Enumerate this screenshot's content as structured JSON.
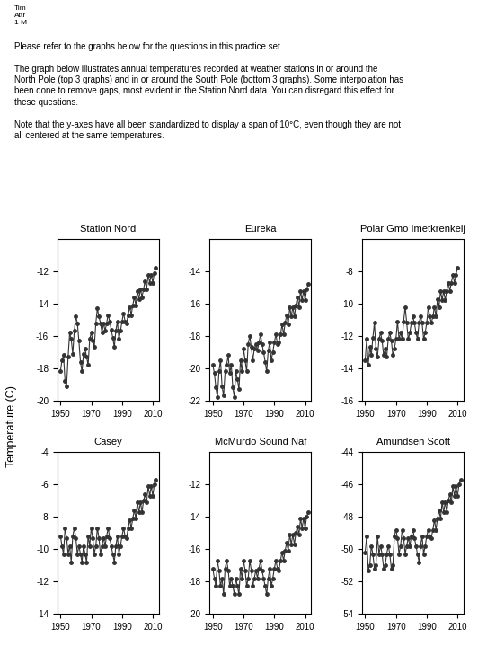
{
  "annotations": [
    "Tim\nAttr\n1 M",
    "Please refer to the graphs below for the questions in this practice set.\n\nThe graph below illustrates annual temperatures recorded at weather stations in or around the\nNorth Pole (top 3 graphs) and in or around the South Pole (bottom 3 graphs). Some interpolation has\nbeen done to remove gaps, most evident in the Station Nord data. You can disregard this effect for\nthese questions.\n\nNote that the y-axes have all been standardized to display a span of 10°C, even though they are not\nall centered at the same temperatures."
  ],
  "ylabel": "Temperature (C)",
  "chart_data": [
    {
      "type": "line",
      "title": "Station Nord",
      "color": "#333333",
      "marker": "circle",
      "line_style": "solid",
      "xlim": [
        1948,
        2014
      ],
      "xticks": [
        1950,
        1970,
        1990,
        2010
      ],
      "ylim": [
        -20,
        -10
      ],
      "yticks": [
        -20,
        -18,
        -16,
        -14,
        -12
      ],
      "x": [
        1950,
        1951,
        1952,
        1953,
        1954,
        1955,
        1956,
        1957,
        1958,
        1959,
        1960,
        1961,
        1962,
        1963,
        1964,
        1965,
        1966,
        1967,
        1968,
        1969,
        1970,
        1971,
        1972,
        1973,
        1974,
        1975,
        1976,
        1977,
        1978,
        1979,
        1980,
        1981,
        1982,
        1983,
        1984,
        1985,
        1986,
        1987,
        1988,
        1989,
        1990,
        1991,
        1992,
        1993,
        1994,
        1995,
        1996,
        1997,
        1998,
        1999,
        2000,
        2001,
        2002,
        2003,
        2004,
        2005,
        2006,
        2007,
        2008,
        2009,
        2010,
        2011,
        2012
      ],
      "values": [
        -18.2,
        -17.5,
        -17.2,
        -18.8,
        -19.1,
        -17.3,
        -15.8,
        -16.2,
        -17.1,
        -15.7,
        -14.8,
        -15.2,
        -16.3,
        -17.6,
        -18.2,
        -17.1,
        -16.8,
        -17.3,
        -17.8,
        -16.2,
        -15.8,
        -16.3,
        -16.7,
        -15.2,
        -14.3,
        -14.8,
        -15.2,
        -15.8,
        -15.2,
        -15.7,
        -15.2,
        -14.7,
        -15.1,
        -15.6,
        -16.1,
        -16.7,
        -15.7,
        -15.1,
        -16.2,
        -15.7,
        -15.1,
        -14.6,
        -15.1,
        -15.2,
        -14.7,
        -14.2,
        -14.7,
        -14.1,
        -13.6,
        -14.1,
        -13.2,
        -13.7,
        -13.1,
        -13.6,
        -13.1,
        -12.6,
        -13.1,
        -12.2,
        -12.7,
        -12.2,
        -12.7,
        -12.1,
        -11.8
      ]
    },
    {
      "type": "line",
      "title": "Eureka",
      "color": "#333333",
      "marker": "circle",
      "line_style": "solid",
      "xlim": [
        1948,
        2014
      ],
      "xticks": [
        1950,
        1970,
        1990,
        2010
      ],
      "ylim": [
        -22,
        -12
      ],
      "yticks": [
        -22,
        -20,
        -18,
        -16,
        -14
      ],
      "x": [
        1950,
        1951,
        1952,
        1953,
        1954,
        1955,
        1956,
        1957,
        1958,
        1959,
        1960,
        1961,
        1962,
        1963,
        1964,
        1965,
        1966,
        1967,
        1968,
        1969,
        1970,
        1971,
        1972,
        1973,
        1974,
        1975,
        1976,
        1977,
        1978,
        1979,
        1980,
        1981,
        1982,
        1983,
        1984,
        1985,
        1986,
        1987,
        1988,
        1989,
        1990,
        1991,
        1992,
        1993,
        1994,
        1995,
        1996,
        1997,
        1998,
        1999,
        2000,
        2001,
        2002,
        2003,
        2004,
        2005,
        2006,
        2007,
        2008,
        2009,
        2010,
        2011,
        2012
      ],
      "values": [
        -19.8,
        -20.3,
        -21.2,
        -21.8,
        -20.2,
        -19.5,
        -21.1,
        -21.7,
        -20.2,
        -19.8,
        -19.2,
        -20.3,
        -19.8,
        -21.2,
        -21.8,
        -20.2,
        -20.7,
        -21.3,
        -19.5,
        -20.2,
        -18.8,
        -19.5,
        -20.2,
        -18.5,
        -18.0,
        -18.7,
        -19.5,
        -18.8,
        -18.5,
        -18.9,
        -18.4,
        -17.9,
        -18.5,
        -19.0,
        -19.6,
        -20.2,
        -18.9,
        -18.4,
        -19.5,
        -19.0,
        -18.4,
        -17.9,
        -18.5,
        -18.4,
        -17.9,
        -17.3,
        -17.9,
        -17.2,
        -16.7,
        -17.3,
        -16.2,
        -16.8,
        -16.2,
        -16.8,
        -16.1,
        -15.6,
        -16.2,
        -15.2,
        -15.8,
        -15.2,
        -15.8,
        -15.1,
        -14.8
      ]
    },
    {
      "type": "line",
      "title": "Polar Gmo Imetkrenkelj",
      "color": "#333333",
      "marker": "circle",
      "line_style": "solid",
      "xlim": [
        1948,
        2014
      ],
      "xticks": [
        1950,
        1970,
        1990,
        2010
      ],
      "ylim": [
        -16,
        -6
      ],
      "yticks": [
        -16,
        -14,
        -12,
        -10,
        -8
      ],
      "x": [
        1950,
        1951,
        1952,
        1953,
        1954,
        1955,
        1956,
        1957,
        1958,
        1959,
        1960,
        1961,
        1962,
        1963,
        1964,
        1965,
        1966,
        1967,
        1968,
        1969,
        1970,
        1971,
        1972,
        1973,
        1974,
        1975,
        1976,
        1977,
        1978,
        1979,
        1980,
        1981,
        1982,
        1983,
        1984,
        1985,
        1986,
        1987,
        1988,
        1989,
        1990,
        1991,
        1992,
        1993,
        1994,
        1995,
        1996,
        1997,
        1998,
        1999,
        2000,
        2001,
        2002,
        2003,
        2004,
        2005,
        2006,
        2007,
        2008,
        2009,
        2010
      ],
      "values": [
        -13.5,
        -12.2,
        -13.8,
        -12.7,
        -13.2,
        -12.1,
        -11.2,
        -12.8,
        -13.3,
        -12.2,
        -11.8,
        -12.3,
        -13.2,
        -12.8,
        -13.3,
        -12.2,
        -11.8,
        -12.3,
        -13.2,
        -12.8,
        -12.2,
        -11.1,
        -12.2,
        -11.8,
        -12.2,
        -11.1,
        -10.2,
        -11.2,
        -12.2,
        -11.8,
        -11.2,
        -10.8,
        -11.2,
        -11.8,
        -12.2,
        -11.2,
        -10.8,
        -11.2,
        -12.2,
        -11.8,
        -11.2,
        -10.2,
        -10.8,
        -11.2,
        -10.8,
        -10.2,
        -10.8,
        -9.7,
        -10.2,
        -9.2,
        -9.8,
        -9.2,
        -9.8,
        -9.2,
        -8.7,
        -9.2,
        -8.7,
        -8.2,
        -8.7,
        -8.2,
        -7.8
      ]
    },
    {
      "type": "line",
      "title": "Casey",
      "color": "#333333",
      "marker": "circle",
      "line_style": "solid",
      "xlim": [
        1948,
        2014
      ],
      "xticks": [
        1950,
        1970,
        1990,
        2010
      ],
      "ylim": [
        -14,
        -4
      ],
      "yticks": [
        -14,
        -12,
        -10,
        -8,
        -6,
        -4
      ],
      "x": [
        1950,
        1951,
        1952,
        1953,
        1954,
        1955,
        1956,
        1957,
        1958,
        1959,
        1960,
        1961,
        1962,
        1963,
        1964,
        1965,
        1966,
        1967,
        1968,
        1969,
        1970,
        1971,
        1972,
        1973,
        1974,
        1975,
        1976,
        1977,
        1978,
        1979,
        1980,
        1981,
        1982,
        1983,
        1984,
        1985,
        1986,
        1987,
        1988,
        1989,
        1990,
        1991,
        1992,
        1993,
        1994,
        1995,
        1996,
        1997,
        1998,
        1999,
        2000,
        2001,
        2002,
        2003,
        2004,
        2005,
        2006,
        2007,
        2008,
        2009,
        2010,
        2011,
        2012
      ],
      "values": [
        -9.2,
        -9.8,
        -10.3,
        -8.7,
        -9.3,
        -10.3,
        -9.8,
        -10.8,
        -9.2,
        -8.7,
        -9.3,
        -10.3,
        -9.8,
        -10.3,
        -10.8,
        -9.8,
        -10.3,
        -10.8,
        -9.2,
        -9.8,
        -8.7,
        -9.3,
        -10.3,
        -9.8,
        -8.7,
        -9.3,
        -10.3,
        -9.8,
        -9.3,
        -9.8,
        -9.2,
        -8.7,
        -9.3,
        -9.8,
        -10.3,
        -10.8,
        -9.8,
        -9.2,
        -10.3,
        -9.8,
        -9.2,
        -8.7,
        -9.2,
        -9.3,
        -8.7,
        -8.2,
        -8.7,
        -8.1,
        -7.6,
        -8.1,
        -7.1,
        -7.7,
        -7.1,
        -7.7,
        -7.0,
        -6.6,
        -7.1,
        -6.1,
        -6.7,
        -6.1,
        -6.7,
        -6.0,
        -5.7
      ]
    },
    {
      "type": "line",
      "title": "McMurdo Sound Naf",
      "color": "#333333",
      "marker": "circle",
      "line_style": "solid",
      "xlim": [
        1948,
        2014
      ],
      "xticks": [
        1950,
        1970,
        1990,
        2010
      ],
      "ylim": [
        -20,
        -10
      ],
      "yticks": [
        -20,
        -18,
        -16,
        -14,
        -12
      ],
      "x": [
        1950,
        1951,
        1952,
        1953,
        1954,
        1955,
        1956,
        1957,
        1958,
        1959,
        1960,
        1961,
        1962,
        1963,
        1964,
        1965,
        1966,
        1967,
        1968,
        1969,
        1970,
        1971,
        1972,
        1973,
        1974,
        1975,
        1976,
        1977,
        1978,
        1979,
        1980,
        1981,
        1982,
        1983,
        1984,
        1985,
        1986,
        1987,
        1988,
        1989,
        1990,
        1991,
        1992,
        1993,
        1994,
        1995,
        1996,
        1997,
        1998,
        1999,
        2000,
        2001,
        2002,
        2003,
        2004,
        2005,
        2006,
        2007,
        2008,
        2009,
        2010,
        2011,
        2012
      ],
      "values": [
        -17.2,
        -17.8,
        -18.3,
        -16.7,
        -17.3,
        -18.3,
        -17.8,
        -18.8,
        -17.2,
        -16.7,
        -17.3,
        -18.3,
        -17.8,
        -18.3,
        -18.8,
        -17.8,
        -18.3,
        -18.8,
        -17.2,
        -17.8,
        -16.7,
        -17.3,
        -18.3,
        -17.8,
        -16.7,
        -17.3,
        -18.3,
        -17.8,
        -17.3,
        -17.8,
        -17.2,
        -16.7,
        -17.3,
        -17.8,
        -18.3,
        -18.8,
        -17.8,
        -17.2,
        -18.3,
        -17.8,
        -17.2,
        -16.7,
        -17.2,
        -17.3,
        -16.7,
        -16.2,
        -16.7,
        -16.1,
        -15.6,
        -16.1,
        -15.1,
        -15.7,
        -15.1,
        -15.7,
        -15.0,
        -14.6,
        -15.1,
        -14.1,
        -14.7,
        -14.1,
        -14.7,
        -14.0,
        -13.7
      ]
    },
    {
      "type": "line",
      "title": "Amundsen Scott",
      "color": "#333333",
      "marker": "circle",
      "line_style": "solid",
      "xlim": [
        1948,
        2014
      ],
      "xticks": [
        1950,
        1970,
        1990,
        2010
      ],
      "ylim": [
        -54,
        -44
      ],
      "yticks": [
        -54,
        -52,
        -50,
        -48,
        -46,
        -44
      ],
      "x": [
        1950,
        1951,
        1952,
        1953,
        1954,
        1955,
        1956,
        1957,
        1958,
        1959,
        1960,
        1961,
        1962,
        1963,
        1964,
        1965,
        1966,
        1967,
        1968,
        1969,
        1970,
        1971,
        1972,
        1973,
        1974,
        1975,
        1976,
        1977,
        1978,
        1979,
        1980,
        1981,
        1982,
        1983,
        1984,
        1985,
        1986,
        1987,
        1988,
        1989,
        1990,
        1991,
        1992,
        1993,
        1994,
        1995,
        1996,
        1997,
        1998,
        1999,
        2000,
        2001,
        2002,
        2003,
        2004,
        2005,
        2006,
        2007,
        2008,
        2009,
        2010,
        2011,
        2012
      ],
      "values": [
        -50.2,
        -49.2,
        -51.3,
        -51.0,
        -49.8,
        -50.3,
        -51.2,
        -51.0,
        -49.2,
        -50.3,
        -49.8,
        -50.3,
        -51.2,
        -51.0,
        -50.3,
        -49.8,
        -50.3,
        -51.2,
        -51.0,
        -49.2,
        -48.8,
        -49.3,
        -50.3,
        -49.8,
        -48.8,
        -49.3,
        -50.3,
        -49.8,
        -49.3,
        -49.8,
        -49.2,
        -48.8,
        -49.3,
        -49.8,
        -50.3,
        -50.8,
        -49.8,
        -49.2,
        -50.3,
        -49.8,
        -49.2,
        -48.8,
        -49.2,
        -49.3,
        -48.8,
        -48.2,
        -48.8,
        -48.1,
        -47.6,
        -48.1,
        -47.1,
        -47.7,
        -47.1,
        -47.7,
        -47.0,
        -46.6,
        -47.1,
        -46.1,
        -46.7,
        -46.1,
        -46.7,
        -46.0,
        -45.7
      ]
    }
  ]
}
